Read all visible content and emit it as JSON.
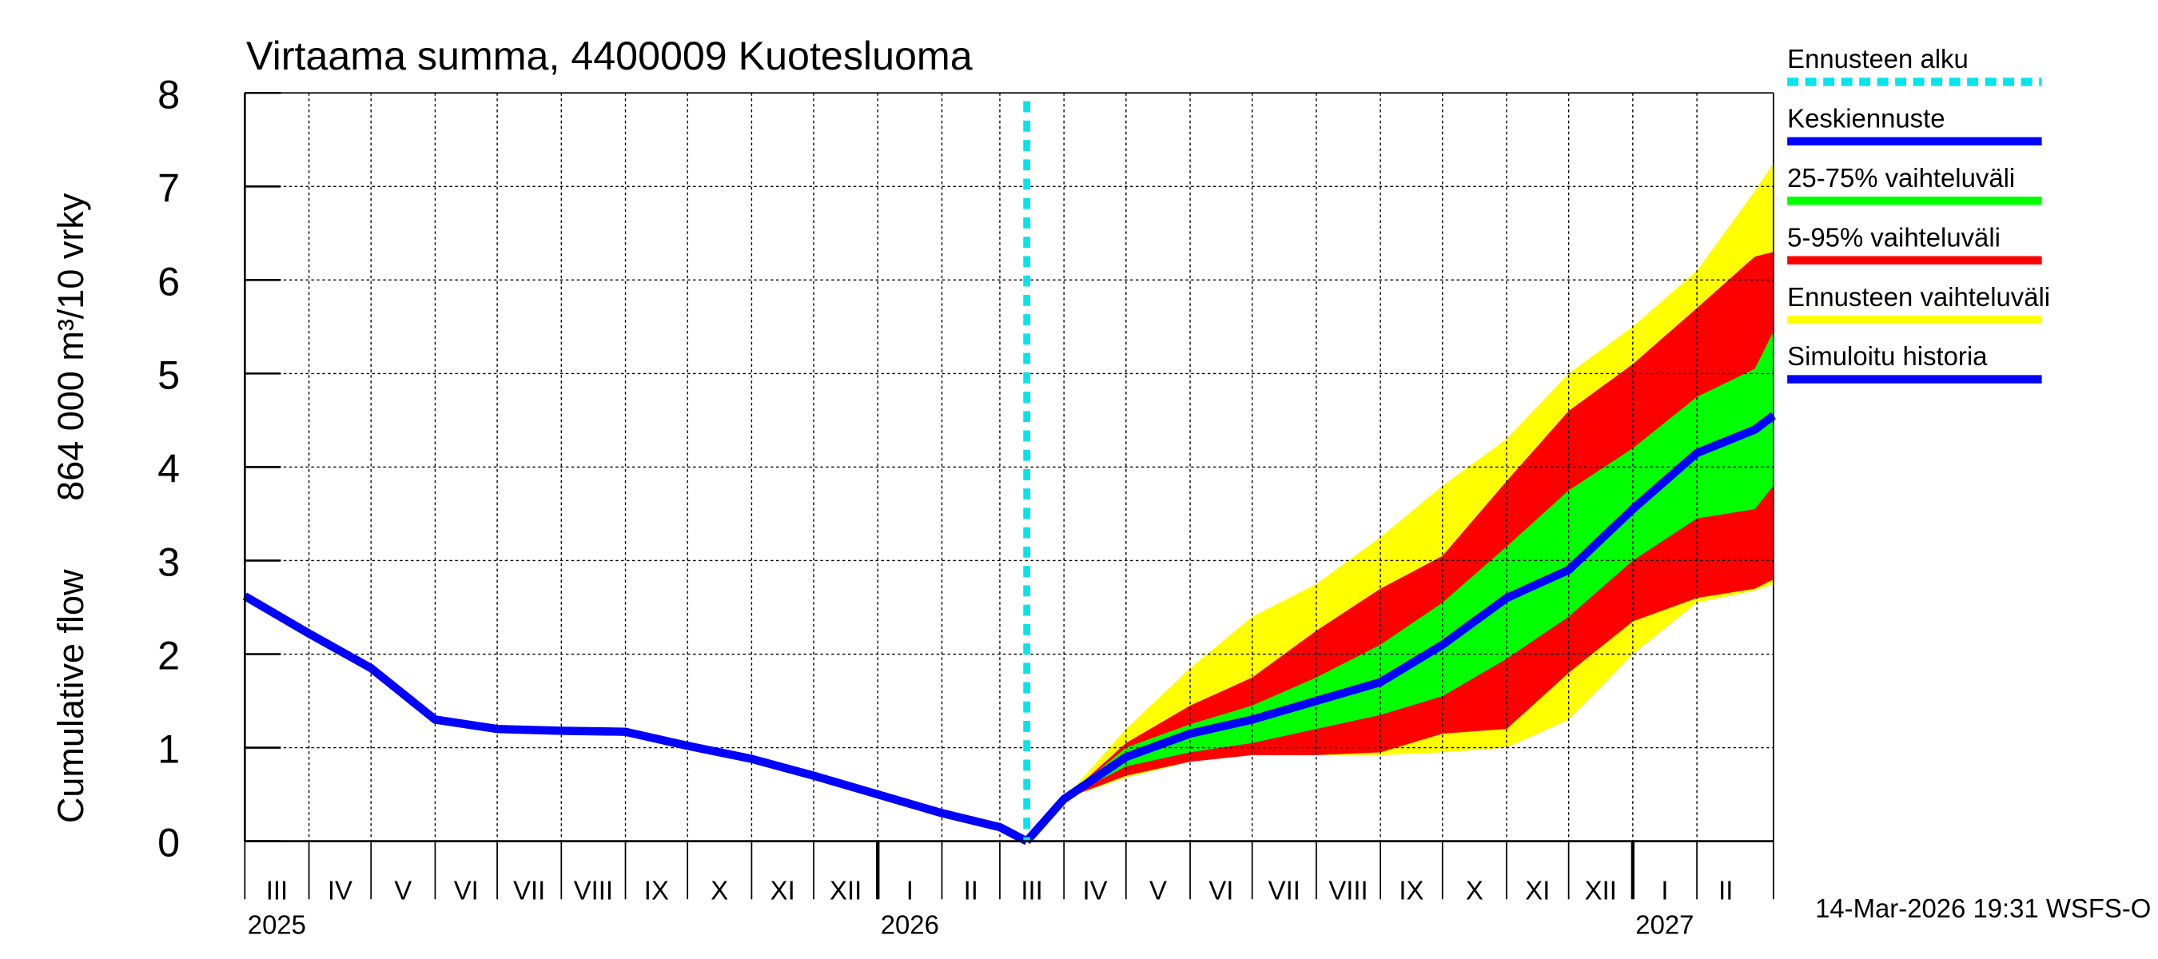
{
  "chart_data": {
    "type": "line",
    "title": "Virtaama summa, 4400009 Kuotesluoma",
    "ylabel": [
      "Cumulative flow",
      "864 000 m³/10 vrky"
    ],
    "footer": "14-Mar-2026 19:31 WSFS-O",
    "forecast_start": {
      "name": "Ennusteen alku",
      "color": "#00e5ee",
      "x": "2026-03-14"
    },
    "x": [
      "2025-03-01",
      "2025-04-01",
      "2025-05-01",
      "2025-06-01",
      "2025-07-01",
      "2025-08-01",
      "2025-09-01",
      "2025-10-01",
      "2025-11-01",
      "2025-12-01",
      "2026-01-01",
      "2026-02-01",
      "2026-03-01",
      "2026-03-14",
      "2026-04-01",
      "2026-05-01",
      "2026-06-01",
      "2026-07-01",
      "2026-08-01",
      "2026-09-01",
      "2026-10-01",
      "2026-11-01",
      "2026-12-01",
      "2027-01-01",
      "2027-02-01",
      "2027-03-01",
      "2027-03-10"
    ],
    "series": [
      {
        "name": "Keskiennuste",
        "color": "#0000ff",
        "kind": "line",
        "values": [
          null,
          null,
          null,
          null,
          null,
          null,
          null,
          null,
          null,
          null,
          null,
          null,
          null,
          0,
          0.45,
          0.9,
          1.15,
          1.3,
          1.5,
          1.7,
          2.1,
          2.6,
          2.9,
          3.55,
          4.15,
          4.4,
          4.55
        ]
      },
      {
        "name": "25-75% vaihteluväli",
        "color": "#00ff00",
        "kind": "band",
        "lower": [
          null,
          null,
          null,
          null,
          null,
          null,
          null,
          null,
          null,
          null,
          null,
          null,
          null,
          0,
          0.45,
          0.8,
          0.95,
          1.05,
          1.2,
          1.35,
          1.55,
          1.95,
          2.4,
          3.0,
          3.45,
          3.55,
          3.8
        ],
        "upper": [
          null,
          null,
          null,
          null,
          null,
          null,
          null,
          null,
          null,
          null,
          null,
          null,
          null,
          0,
          0.45,
          1.0,
          1.25,
          1.45,
          1.75,
          2.1,
          2.55,
          3.15,
          3.75,
          4.2,
          4.75,
          5.05,
          5.45
        ]
      },
      {
        "name": "5-95% vaihteluväli",
        "color": "#ff0000",
        "kind": "band",
        "lower": [
          null,
          null,
          null,
          null,
          null,
          null,
          null,
          null,
          null,
          null,
          null,
          null,
          null,
          0,
          0.45,
          0.7,
          0.85,
          0.92,
          0.92,
          0.95,
          1.15,
          1.2,
          1.8,
          2.35,
          2.6,
          2.7,
          2.8
        ],
        "upper": [
          null,
          null,
          null,
          null,
          null,
          null,
          null,
          null,
          null,
          null,
          null,
          null,
          null,
          0,
          0.45,
          1.05,
          1.45,
          1.75,
          2.25,
          2.7,
          3.05,
          3.85,
          4.6,
          5.1,
          5.7,
          6.25,
          6.3
        ]
      },
      {
        "name": "Ennusteen vaihteluväli",
        "color": "#ffff00",
        "kind": "band",
        "lower": [
          null,
          null,
          null,
          null,
          null,
          null,
          null,
          null,
          null,
          null,
          null,
          null,
          null,
          0,
          0.45,
          0.68,
          0.85,
          0.92,
          0.92,
          0.92,
          0.95,
          1.0,
          1.3,
          2.0,
          2.55,
          2.68,
          2.75
        ],
        "upper": [
          null,
          null,
          null,
          null,
          null,
          null,
          null,
          null,
          null,
          null,
          null,
          null,
          null,
          0,
          0.45,
          1.2,
          1.85,
          2.4,
          2.75,
          3.25,
          3.8,
          4.3,
          5.0,
          5.5,
          6.1,
          6.95,
          7.25
        ]
      },
      {
        "name": "Simuloitu historia",
        "color": "#0000ff",
        "kind": "line",
        "values": [
          2.62,
          2.22,
          1.85,
          1.3,
          1.2,
          1.18,
          1.17,
          1.02,
          0.88,
          0.7,
          0.5,
          0.3,
          0.15,
          0,
          null,
          null,
          null,
          null,
          null,
          null,
          null,
          null,
          null,
          null,
          null,
          null,
          null
        ]
      }
    ],
    "xlim": [
      "2025-03-01",
      "2027-03-10"
    ],
    "ylim": [
      0,
      8
    ],
    "yticks": [
      0,
      1,
      2,
      3,
      4,
      5,
      6,
      7,
      8
    ],
    "grid": true,
    "xticks": [
      {
        "value": "2025-03-01",
        "label": "III"
      },
      {
        "value": "2025-04-01",
        "label": "IV"
      },
      {
        "value": "2025-05-01",
        "label": "V"
      },
      {
        "value": "2025-06-01",
        "label": "VI"
      },
      {
        "value": "2025-07-01",
        "label": "VII"
      },
      {
        "value": "2025-08-01",
        "label": "VIII"
      },
      {
        "value": "2025-09-01",
        "label": "IX"
      },
      {
        "value": "2025-10-01",
        "label": "X"
      },
      {
        "value": "2025-11-01",
        "label": "XI"
      },
      {
        "value": "2025-12-01",
        "label": "XII"
      },
      {
        "value": "2026-01-01",
        "label": "I"
      },
      {
        "value": "2026-02-01",
        "label": "II"
      },
      {
        "value": "2026-03-01",
        "label": "III"
      },
      {
        "value": "2026-04-01",
        "label": "IV"
      },
      {
        "value": "2026-05-01",
        "label": "V"
      },
      {
        "value": "2026-06-01",
        "label": "VI"
      },
      {
        "value": "2026-07-01",
        "label": "VII"
      },
      {
        "value": "2026-08-01",
        "label": "VIII"
      },
      {
        "value": "2026-09-01",
        "label": "IX"
      },
      {
        "value": "2026-10-01",
        "label": "X"
      },
      {
        "value": "2026-11-01",
        "label": "XI"
      },
      {
        "value": "2026-12-01",
        "label": "XII"
      },
      {
        "value": "2027-01-01",
        "label": "I"
      },
      {
        "value": "2027-02-01",
        "label": "II"
      }
    ],
    "years": [
      "2025",
      "2026",
      "2027"
    ]
  }
}
